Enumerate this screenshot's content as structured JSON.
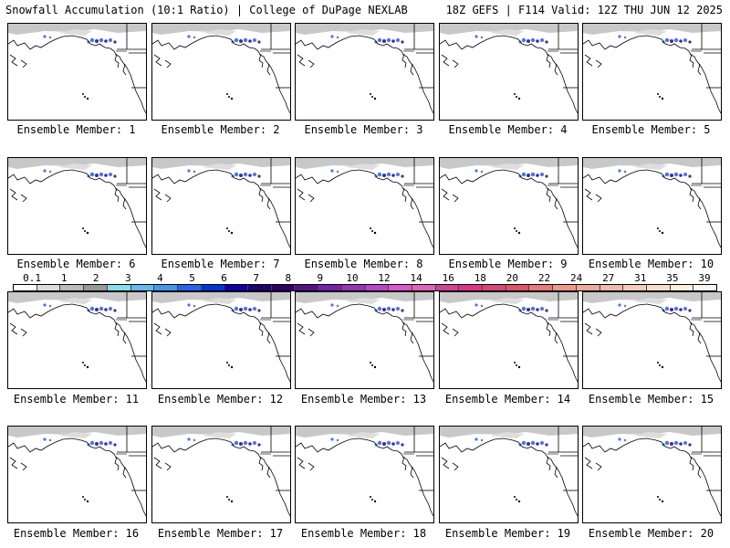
{
  "header": {
    "left": "Snowfall Accumulation (10:1 Ratio) | College of DuPage NEXLAB",
    "right": "18Z GEFS | F114 Valid: 12Z THU JUN 12 2025"
  },
  "caption_prefix": "Ensemble Member:",
  "members": [
    "1",
    "2",
    "3",
    "4",
    "5",
    "6",
    "7",
    "8",
    "9",
    "10",
    "11",
    "12",
    "13",
    "14",
    "15",
    "16",
    "17",
    "18",
    "19",
    "20"
  ],
  "legend": {
    "labels": [
      "0.1",
      "1",
      "2",
      "3",
      "4",
      "5",
      "6",
      "7",
      "8",
      "9",
      "10",
      "12",
      "14",
      "16",
      "18",
      "20",
      "22",
      "24",
      "27",
      "31",
      "35",
      "39"
    ],
    "colors": [
      "#ffffff",
      "#dddddd",
      "#bbbbbb",
      "#999999",
      "#88ddee",
      "#66bbee",
      "#4499ee",
      "#2266ee",
      "#0033dd",
      "#1100aa",
      "#220077",
      "#330066",
      "#551188",
      "#7722aa",
      "#9933bb",
      "#bb44cc",
      "#dd55cc",
      "#dd66bb",
      "#cc4499",
      "#dd3388",
      "#dd4477",
      "#dd5566",
      "#ee7777",
      "#ee9988",
      "#eeaa99",
      "#eebbaa",
      "#f5ccbb",
      "#f8ddcc",
      "#fbeedd",
      "#fff5ee"
    ]
  },
  "colors": {
    "coast": "#000000",
    "snow_light": "#c8c8c8",
    "snow_blue": "#4477ee",
    "snow_purple": "#552299"
  }
}
